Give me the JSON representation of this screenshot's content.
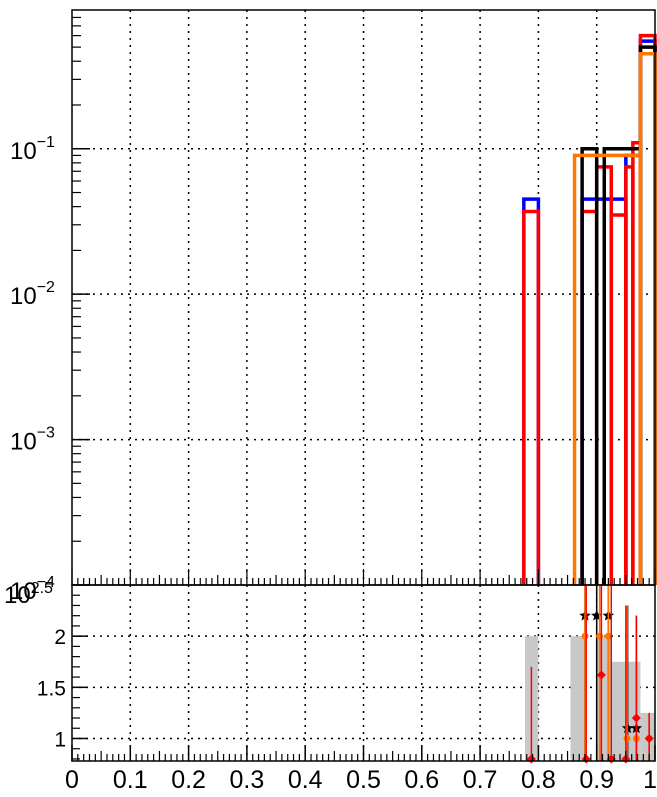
{
  "chart_data": [
    {
      "type": "step",
      "panel": "main",
      "yscale": "log",
      "xlim": [
        0,
        1
      ],
      "ylim": [
        0.0001,
        0.9
      ],
      "grid": true,
      "y_ticks": [
        {
          "value": 0.1,
          "base": "10",
          "exp": "−1"
        },
        {
          "value": 0.01,
          "base": "10",
          "exp": "−2"
        },
        {
          "value": 0.001,
          "base": "10",
          "exp": "−3"
        },
        {
          "value": 0.0001,
          "base": "10",
          "exp": "−4"
        }
      ],
      "bin_edges": [
        0,
        0.025,
        0.05,
        0.075,
        0.1,
        0.125,
        0.15,
        0.175,
        0.2,
        0.225,
        0.25,
        0.275,
        0.3,
        0.325,
        0.35,
        0.375,
        0.4,
        0.425,
        0.45,
        0.475,
        0.5,
        0.525,
        0.55,
        0.575,
        0.6,
        0.625,
        0.65,
        0.675,
        0.7,
        0.725,
        0.75,
        0.775,
        0.8,
        0.825,
        0.85,
        0.875,
        0.9,
        0.925,
        0.95,
        0.975,
        1.0
      ],
      "series": [
        {
          "color": "#0000ff",
          "bins": [
            {
              "lo": 0.775,
              "hi": 0.8,
              "v": 0.045
            },
            {
              "lo": 0.875,
              "hi": 0.95,
              "v": 0.045
            },
            {
              "lo": 0.95,
              "hi": 0.975,
              "v": 0.09
            },
            {
              "lo": 0.975,
              "hi": 1.0,
              "v": 0.55
            }
          ]
        },
        {
          "color": "#ff0000",
          "bins": [
            {
              "lo": 0.775,
              "hi": 0.8,
              "v": 0.037
            },
            {
              "lo": 0.875,
              "hi": 0.9,
              "v": 0.037
            },
            {
              "lo": 0.9,
              "hi": 0.925,
              "v": 0.075
            },
            {
              "lo": 0.925,
              "hi": 0.95,
              "v": 0.035
            },
            {
              "lo": 0.95,
              "hi": 0.962,
              "v": 0.075
            },
            {
              "lo": 0.962,
              "hi": 0.975,
              "v": 0.11
            },
            {
              "lo": 0.975,
              "hi": 1.0,
              "v": 0.6
            }
          ]
        },
        {
          "color": "#000000",
          "bins": [
            {
              "lo": 0.875,
              "hi": 0.9,
              "v": 0.1
            },
            {
              "lo": 0.913,
              "hi": 0.975,
              "v": 0.1
            },
            {
              "lo": 0.975,
              "hi": 1.0,
              "v": 0.5
            }
          ]
        },
        {
          "color": "#ff7700",
          "bins": [
            {
              "lo": 0.862,
              "hi": 0.975,
              "v": 0.09
            },
            {
              "lo": 0.975,
              "hi": 1.0,
              "v": 0.45
            }
          ]
        }
      ]
    },
    {
      "type": "scatter",
      "panel": "ratio",
      "xlim": [
        0,
        1
      ],
      "ylim": [
        0.78,
        2.5
      ],
      "grid": true,
      "x_ticks": [
        {
          "value": 0,
          "label": "0"
        },
        {
          "value": 0.1,
          "label": "0.1"
        },
        {
          "value": 0.2,
          "label": "0.2"
        },
        {
          "value": 0.3,
          "label": "0.3"
        },
        {
          "value": 0.4,
          "label": "0.4"
        },
        {
          "value": 0.5,
          "label": "0.5"
        },
        {
          "value": 0.6,
          "label": "0.6"
        },
        {
          "value": 0.7,
          "label": "0.7"
        },
        {
          "value": 0.8,
          "label": "0.8"
        },
        {
          "value": 0.9,
          "label": "0.9"
        },
        {
          "value": 1.0,
          "label": "1"
        }
      ],
      "y_ticks": [
        {
          "value": 1,
          "label": "1"
        },
        {
          "value": 1.5,
          "label": "1.5"
        },
        {
          "value": 2,
          "label": "2"
        }
      ],
      "top_label": {
        "base": "10",
        "exp": "2.5"
      },
      "bands": [
        {
          "x0": 0.777,
          "x1": 0.8,
          "hi": 2.0
        },
        {
          "x0": 0.855,
          "x1": 0.88,
          "hi": 2.0
        },
        {
          "x0": 0.9,
          "x1": 0.925,
          "hi": 2.0
        },
        {
          "x0": 0.925,
          "x1": 0.95,
          "hi": 1.75
        },
        {
          "x0": 0.95,
          "x1": 0.975,
          "hi": 1.75
        },
        {
          "x0": 0.975,
          "x1": 1.0,
          "hi": 1.25
        }
      ],
      "points": [
        {
          "series": "black",
          "color": "#000000",
          "marker": "star",
          "x": 0.88,
          "y": 2.2,
          "lo": 0.78,
          "hi": 2.5
        },
        {
          "series": "black",
          "color": "#000000",
          "marker": "star",
          "x": 0.9,
          "y": 2.2,
          "lo": 0.78,
          "hi": 2.5
        },
        {
          "series": "black",
          "color": "#000000",
          "marker": "star",
          "x": 0.92,
          "y": 2.2,
          "lo": 0.78,
          "hi": 2.5
        },
        {
          "series": "black",
          "color": "#000000",
          "marker": "star",
          "x": 0.953,
          "y": 1.1,
          "lo": 0.78,
          "hi": 2.3
        },
        {
          "series": "black",
          "color": "#000000",
          "marker": "star",
          "x": 0.968,
          "y": 1.1,
          "lo": 0.78,
          "hi": 2.2
        },
        {
          "series": "orange",
          "color": "#ff7700",
          "marker": "circle",
          "x": 0.88,
          "y": 2.0,
          "lo": 0.78,
          "hi": 2.5
        },
        {
          "series": "orange",
          "color": "#ff7700",
          "marker": "circle",
          "x": 0.905,
          "y": 2.0,
          "lo": 0.78,
          "hi": 2.5
        },
        {
          "series": "orange",
          "color": "#ff7700",
          "marker": "circle",
          "x": 0.92,
          "y": 2.0,
          "lo": 0.78,
          "hi": 2.5
        },
        {
          "series": "orange",
          "color": "#ff7700",
          "marker": "circle",
          "x": 0.952,
          "y": 1.0,
          "lo": 0.78,
          "hi": 2.3
        },
        {
          "series": "orange",
          "color": "#ff7700",
          "marker": "circle",
          "x": 0.968,
          "y": 1.0,
          "lo": 0.78,
          "hi": 2.2
        },
        {
          "series": "orange",
          "color": "#ff7700",
          "marker": "circle",
          "x": 0.99,
          "y": 1.0,
          "lo": 0.78,
          "hi": 1.25
        },
        {
          "series": "red",
          "color": "#ff0000",
          "marker": "diamond",
          "x": 0.788,
          "y": 0.8,
          "lo": 0.78,
          "hi": 1.7
        },
        {
          "series": "red",
          "color": "#ff0000",
          "marker": "diamond",
          "x": 0.908,
          "y": 1.62,
          "lo": 0.78,
          "hi": 2.5
        },
        {
          "series": "red",
          "color": "#ff0000",
          "marker": "diamond",
          "x": 0.95,
          "y": 0.8,
          "lo": 0.78,
          "hi": 2.3
        },
        {
          "series": "red",
          "color": "#ff0000",
          "marker": "diamond",
          "x": 0.968,
          "y": 1.2,
          "lo": 0.78,
          "hi": 2.2
        },
        {
          "series": "red",
          "color": "#ff0000",
          "marker": "diamond",
          "x": 0.99,
          "y": 1.0,
          "lo": 0.78,
          "hi": 1.25
        },
        {
          "series": "red",
          "color": "#ff0000",
          "marker": "diamond",
          "x": 0.925,
          "y": 0.8,
          "lo": 0.78,
          "hi": 2.5
        },
        {
          "series": "red",
          "color": "#ff0000",
          "marker": "diamond",
          "x": 0.882,
          "y": 0.8,
          "lo": 0.78,
          "hi": 2.5
        }
      ]
    }
  ]
}
